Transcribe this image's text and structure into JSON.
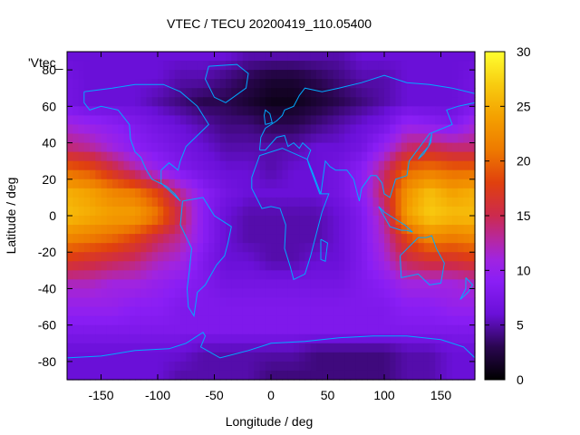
{
  "chart_data": {
    "type": "heatmap",
    "title": "VTEC / TECU 20200419_110.05400",
    "xlabel": "Longitude / deg",
    "ylabel": "Latitude / deg",
    "legend_entry": "'Vtec_",
    "xlim": [
      -180,
      180
    ],
    "ylim": [
      -90,
      90
    ],
    "zlim": [
      0,
      30
    ],
    "xticks": [
      -150,
      -100,
      -50,
      0,
      50,
      100,
      150
    ],
    "yticks": [
      -80,
      -60,
      -40,
      -20,
      0,
      20,
      40,
      60,
      80
    ],
    "cbticks": [
      0,
      5,
      10,
      15,
      20,
      25,
      30
    ],
    "colormap": [
      {
        "v": 0,
        "c": "#000000"
      },
      {
        "v": 3,
        "c": "#2a0650"
      },
      {
        "v": 6,
        "c": "#6a10d8"
      },
      {
        "v": 9,
        "c": "#8a1ef5"
      },
      {
        "v": 11,
        "c": "#a024e0"
      },
      {
        "v": 13,
        "c": "#b8289a"
      },
      {
        "v": 15,
        "c": "#cc2a4e"
      },
      {
        "v": 18,
        "c": "#e0400e"
      },
      {
        "v": 21,
        "c": "#ee7a00"
      },
      {
        "v": 24,
        "c": "#f4a000"
      },
      {
        "v": 27,
        "c": "#f8cc10"
      },
      {
        "v": 30,
        "c": "#ffff30"
      }
    ],
    "vtec_grid": {
      "description": "estimated VTEC in TECU; rows are latitudes, columns are longitudes",
      "lats": [
        87.5,
        75,
        62.5,
        50,
        37.5,
        25,
        12.5,
        0,
        -12.5,
        -25,
        -37.5,
        -50,
        -62.5,
        -75,
        -87.5
      ],
      "lons": [
        -180,
        -160,
        -140,
        -120,
        -100,
        -80,
        -60,
        -40,
        -20,
        0,
        20,
        40,
        60,
        80,
        100,
        120,
        140,
        160,
        180
      ],
      "values": [
        [
          6,
          6,
          6,
          6,
          6,
          6,
          6,
          6,
          5,
          5,
          5,
          5,
          5,
          6,
          6,
          6,
          6,
          6,
          6
        ],
        [
          7,
          6,
          6,
          6,
          6,
          5,
          5,
          4,
          3,
          2,
          2,
          3,
          4,
          5,
          5,
          6,
          6,
          6,
          7
        ],
        [
          7,
          6,
          6,
          6,
          5,
          4,
          3,
          3,
          2,
          1,
          1,
          2,
          3,
          4,
          5,
          6,
          6,
          6,
          7
        ],
        [
          11,
          10,
          9,
          8,
          7,
          6,
          5,
          4,
          4,
          3,
          3,
          4,
          5,
          6,
          7,
          10,
          9,
          8,
          11
        ],
        [
          14,
          13,
          11,
          9,
          8,
          7,
          6,
          5,
          5,
          5,
          5,
          6,
          6,
          7,
          10,
          14,
          15,
          14,
          14
        ],
        [
          20,
          19,
          16,
          13,
          10,
          8,
          7,
          6,
          6,
          5,
          6,
          6,
          7,
          9,
          14,
          20,
          21,
          20,
          20
        ],
        [
          25,
          24,
          22,
          21,
          18,
          13,
          9,
          7,
          6,
          6,
          6,
          6,
          7,
          9,
          15,
          23,
          26,
          24,
          25
        ],
        [
          26,
          25,
          24,
          24,
          21,
          15,
          9,
          6,
          5,
          5,
          5,
          5,
          6,
          8,
          13,
          24,
          27,
          26,
          26
        ],
        [
          22,
          21,
          20,
          18,
          15,
          13,
          9,
          6,
          5,
          5,
          5,
          5,
          6,
          8,
          12,
          18,
          22,
          21,
          22
        ],
        [
          17,
          16,
          15,
          14,
          12,
          11,
          8,
          6,
          6,
          5,
          5,
          6,
          6,
          8,
          11,
          15,
          16,
          16,
          17
        ],
        [
          12,
          12,
          11,
          11,
          10,
          9,
          8,
          7,
          7,
          7,
          7,
          7,
          7,
          8,
          9,
          11,
          11,
          11,
          12
        ],
        [
          10,
          10,
          10,
          9,
          9,
          8,
          8,
          8,
          8,
          8,
          8,
          8,
          8,
          8,
          8,
          9,
          9,
          10,
          10
        ],
        [
          8,
          8,
          8,
          8,
          8,
          8,
          8,
          8,
          8,
          8,
          8,
          8,
          8,
          8,
          8,
          8,
          8,
          8,
          8
        ],
        [
          6,
          6,
          6,
          6,
          6,
          6,
          5,
          5,
          5,
          5,
          5,
          4,
          4,
          4,
          4,
          5,
          5,
          6,
          6
        ],
        [
          6,
          6,
          6,
          6,
          6,
          5,
          5,
          5,
          5,
          4,
          4,
          4,
          4,
          4,
          4,
          5,
          5,
          6,
          6
        ]
      ]
    },
    "coastline_color": "#00aaff"
  }
}
